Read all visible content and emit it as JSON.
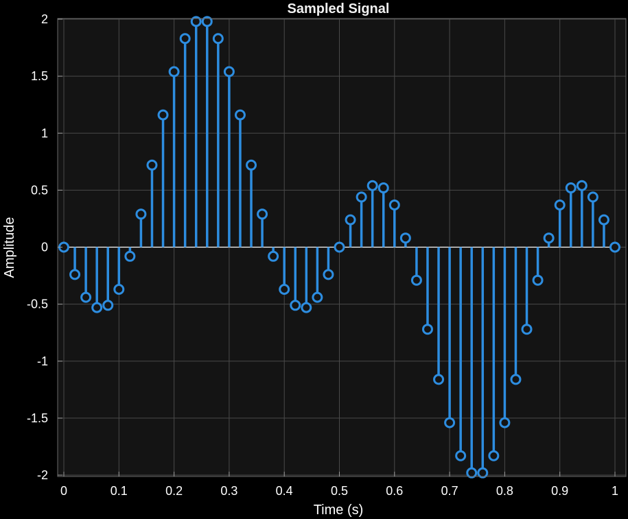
{
  "chart_data": {
    "type": "scatter",
    "style": "stem",
    "title": "Sampled Signal",
    "xlabel": "Time (s)",
    "ylabel": "Amplitude",
    "xlim": [
      0,
      1
    ],
    "ylim": [
      -2,
      2
    ],
    "grid": true,
    "xticks": [
      0,
      0.1,
      0.2,
      0.3,
      0.4,
      0.5,
      0.6,
      0.7,
      0.8,
      0.9,
      1
    ],
    "xtick_labels": [
      "0",
      "0.1",
      "0.2",
      "0.3",
      "0.4",
      "0.5",
      "0.6",
      "0.7",
      "0.8",
      "0.9",
      "1"
    ],
    "yticks": [
      -2,
      -1.5,
      -1,
      -0.5,
      0,
      0.5,
      1,
      1.5,
      2
    ],
    "ytick_labels": [
      "-2",
      "-1.5",
      "-1",
      "-0.5",
      "0",
      "0.5",
      "1",
      "1.5",
      "2"
    ],
    "colors": {
      "background": "#000000",
      "plot_area": "#141414",
      "grid": "#4a4a4a",
      "stem": "#2d8de0",
      "text": "#ffffff"
    },
    "x": [
      0,
      0.02,
      0.04,
      0.06,
      0.08,
      0.1,
      0.12,
      0.14,
      0.16,
      0.18,
      0.2,
      0.22,
      0.24,
      0.26,
      0.28,
      0.3,
      0.32,
      0.34,
      0.36,
      0.38,
      0.4,
      0.42,
      0.44,
      0.46,
      0.48,
      0.5,
      0.52,
      0.54,
      0.56,
      0.58,
      0.6,
      0.62,
      0.64,
      0.66,
      0.68,
      0.7,
      0.72,
      0.74,
      0.76,
      0.78,
      0.8,
      0.82,
      0.84,
      0.86,
      0.88,
      0.9,
      0.92,
      0.94,
      0.96,
      0.98,
      1
    ],
    "y": [
      0,
      -0.24,
      -0.44,
      -0.53,
      -0.51,
      -0.37,
      -0.08,
      0.29,
      0.72,
      1.16,
      1.54,
      1.83,
      1.98,
      1.98,
      1.83,
      1.54,
      1.16,
      0.72,
      0.29,
      -0.08,
      -0.37,
      -0.51,
      -0.53,
      -0.44,
      -0.24,
      0,
      0.24,
      0.44,
      0.54,
      0.52,
      0.37,
      0.08,
      -0.29,
      -0.72,
      -1.16,
      -1.54,
      -1.83,
      -1.98,
      -1.98,
      -1.83,
      -1.54,
      -1.16,
      -0.72,
      -0.29,
      0.08,
      0.37,
      0.52,
      0.54,
      0.44,
      0.24,
      0
    ]
  }
}
